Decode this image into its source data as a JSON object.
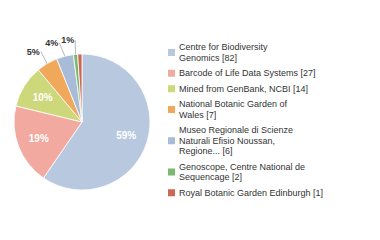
{
  "chart_data": {
    "type": "pie",
    "categories": [
      "Centre for Biodiversity\nGenomics [82]",
      "Barcode of Life Data Systems [27]",
      "Mined from GenBank, NCBI [14]",
      "National Botanic Garden of\nWales [7]",
      "Museo Regionale di Scienze\nNaturali Efisio Noussan,\nRegione... [6]",
      "Genoscope, Centre National de\nSequencage [2]",
      "Royal Botanic Garden Edinburgh [1]"
    ],
    "values": [
      59,
      19,
      10,
      5,
      4,
      1,
      1
    ],
    "value_labels": [
      "59%",
      "19%",
      "10%",
      "5%",
      "4%",
      "1%",
      null
    ],
    "colors": [
      "#b8c9df",
      "#f2a9a0",
      "#cdd87a",
      "#f0a85a",
      "#a8bcd8",
      "#7db870",
      "#cc6655"
    ],
    "data_labels": true,
    "legend": "right"
  }
}
